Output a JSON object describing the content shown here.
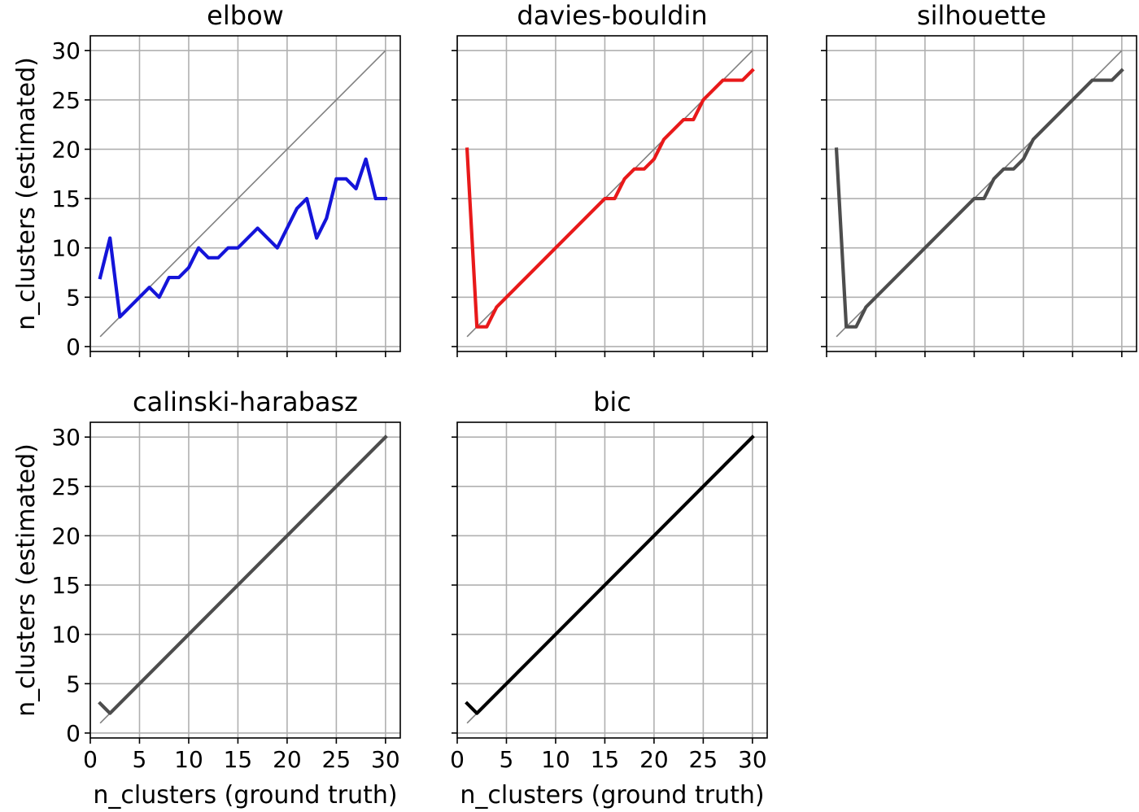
{
  "chart_data": [
    {
      "type": "line",
      "title": "elbow",
      "xlabel": "",
      "ylabel": "n_clusters (estimated)",
      "xlim": [
        0,
        31.5
      ],
      "ylim": [
        -0.5,
        31.5
      ],
      "xticks": [
        0,
        5,
        10,
        15,
        20,
        25,
        30
      ],
      "yticks": [
        0,
        5,
        10,
        15,
        20,
        25,
        30
      ],
      "show_xtick_labels": false,
      "show_ytick_labels": true,
      "grid": true,
      "diagonal": [
        1,
        30
      ],
      "diagonal_color": "#808080",
      "series": [
        {
          "color": "#1414d9",
          "x": [
            1,
            2,
            3,
            4,
            5,
            6,
            7,
            8,
            9,
            10,
            11,
            12,
            13,
            14,
            15,
            16,
            17,
            18,
            19,
            20,
            21,
            22,
            23,
            24,
            25,
            26,
            27,
            28,
            29,
            30
          ],
          "y": [
            7,
            11,
            3,
            4,
            5,
            6,
            5,
            7,
            7,
            8,
            10,
            9,
            9,
            10,
            10,
            11,
            12,
            11,
            10,
            12,
            14,
            15,
            11,
            13,
            17,
            17,
            16,
            19,
            15,
            15
          ]
        }
      ]
    },
    {
      "type": "line",
      "title": "davies-bouldin",
      "xlabel": "",
      "ylabel": "",
      "xlim": [
        0,
        31.5
      ],
      "ylim": [
        -0.5,
        31.5
      ],
      "xticks": [
        0,
        5,
        10,
        15,
        20,
        25,
        30
      ],
      "yticks": [
        0,
        5,
        10,
        15,
        20,
        25,
        30
      ],
      "show_xtick_labels": false,
      "show_ytick_labels": false,
      "grid": true,
      "diagonal": [
        1,
        30
      ],
      "diagonal_color": "#808080",
      "series": [
        {
          "color": "#e8191a",
          "x": [
            1,
            2,
            3,
            4,
            5,
            6,
            7,
            8,
            9,
            10,
            11,
            12,
            13,
            14,
            15,
            16,
            17,
            18,
            19,
            20,
            21,
            22,
            23,
            24,
            25,
            26,
            27,
            28,
            29,
            30
          ],
          "y": [
            20,
            2,
            2,
            4,
            5,
            6,
            7,
            8,
            9,
            10,
            11,
            12,
            13,
            14,
            15,
            15,
            17,
            18,
            18,
            19,
            21,
            22,
            23,
            23,
            25,
            26,
            27,
            27,
            27,
            28
          ]
        }
      ]
    },
    {
      "type": "line",
      "title": "silhouette",
      "xlabel": "",
      "ylabel": "",
      "xlim": [
        0,
        31.5
      ],
      "ylim": [
        -0.5,
        31.5
      ],
      "xticks": [
        0,
        5,
        10,
        15,
        20,
        25,
        30
      ],
      "yticks": [
        0,
        5,
        10,
        15,
        20,
        25,
        30
      ],
      "show_xtick_labels": false,
      "show_ytick_labels": false,
      "grid": true,
      "diagonal": [
        1,
        30
      ],
      "diagonal_color": "#808080",
      "series": [
        {
          "color": "#4d4d4d",
          "x": [
            1,
            2,
            3,
            4,
            5,
            6,
            7,
            8,
            9,
            10,
            11,
            12,
            13,
            14,
            15,
            16,
            17,
            18,
            19,
            20,
            21,
            22,
            23,
            24,
            25,
            26,
            27,
            28,
            29,
            30
          ],
          "y": [
            20,
            2,
            2,
            4,
            5,
            6,
            7,
            8,
            9,
            10,
            11,
            12,
            13,
            14,
            15,
            15,
            17,
            18,
            18,
            19,
            21,
            22,
            23,
            24,
            25,
            26,
            27,
            27,
            27,
            28
          ]
        }
      ]
    },
    {
      "type": "line",
      "title": "calinski-harabasz",
      "xlabel": "n_clusters (ground truth)",
      "ylabel": "n_clusters (estimated)",
      "xlim": [
        0,
        31.5
      ],
      "ylim": [
        -0.5,
        31.5
      ],
      "xticks": [
        0,
        5,
        10,
        15,
        20,
        25,
        30
      ],
      "yticks": [
        0,
        5,
        10,
        15,
        20,
        25,
        30
      ],
      "show_xtick_labels": true,
      "show_ytick_labels": true,
      "grid": true,
      "diagonal": [
        1,
        30
      ],
      "diagonal_color": "#808080",
      "series": [
        {
          "color": "#4d4d4d",
          "x": [
            1,
            2,
            3,
            4,
            5,
            6,
            7,
            8,
            9,
            10,
            11,
            12,
            13,
            14,
            15,
            16,
            17,
            18,
            19,
            20,
            21,
            22,
            23,
            24,
            25,
            26,
            27,
            28,
            29,
            30
          ],
          "y": [
            3,
            2,
            3,
            4,
            5,
            6,
            7,
            8,
            9,
            10,
            11,
            12,
            13,
            14,
            15,
            16,
            17,
            18,
            19,
            20,
            21,
            22,
            23,
            24,
            25,
            26,
            27,
            28,
            29,
            30
          ]
        }
      ]
    },
    {
      "type": "line",
      "title": "bic",
      "xlabel": "n_clusters (ground truth)",
      "ylabel": "",
      "xlim": [
        0,
        31.5
      ],
      "ylim": [
        -0.5,
        31.5
      ],
      "xticks": [
        0,
        5,
        10,
        15,
        20,
        25,
        30
      ],
      "yticks": [
        0,
        5,
        10,
        15,
        20,
        25,
        30
      ],
      "show_xtick_labels": true,
      "show_ytick_labels": false,
      "grid": true,
      "diagonal": [
        1,
        30
      ],
      "diagonal_color": "#808080",
      "series": [
        {
          "color": "#000000",
          "x": [
            1,
            2,
            3,
            4,
            5,
            6,
            7,
            8,
            9,
            10,
            11,
            12,
            13,
            14,
            15,
            16,
            17,
            18,
            19,
            20,
            21,
            22,
            23,
            24,
            25,
            26,
            27,
            28,
            29,
            30
          ],
          "y": [
            3,
            2,
            3,
            4,
            5,
            6,
            7,
            8,
            9,
            10,
            11,
            12,
            13,
            14,
            15,
            16,
            17,
            18,
            19,
            20,
            21,
            22,
            23,
            24,
            25,
            26,
            27,
            28,
            29,
            30
          ]
        }
      ]
    }
  ]
}
